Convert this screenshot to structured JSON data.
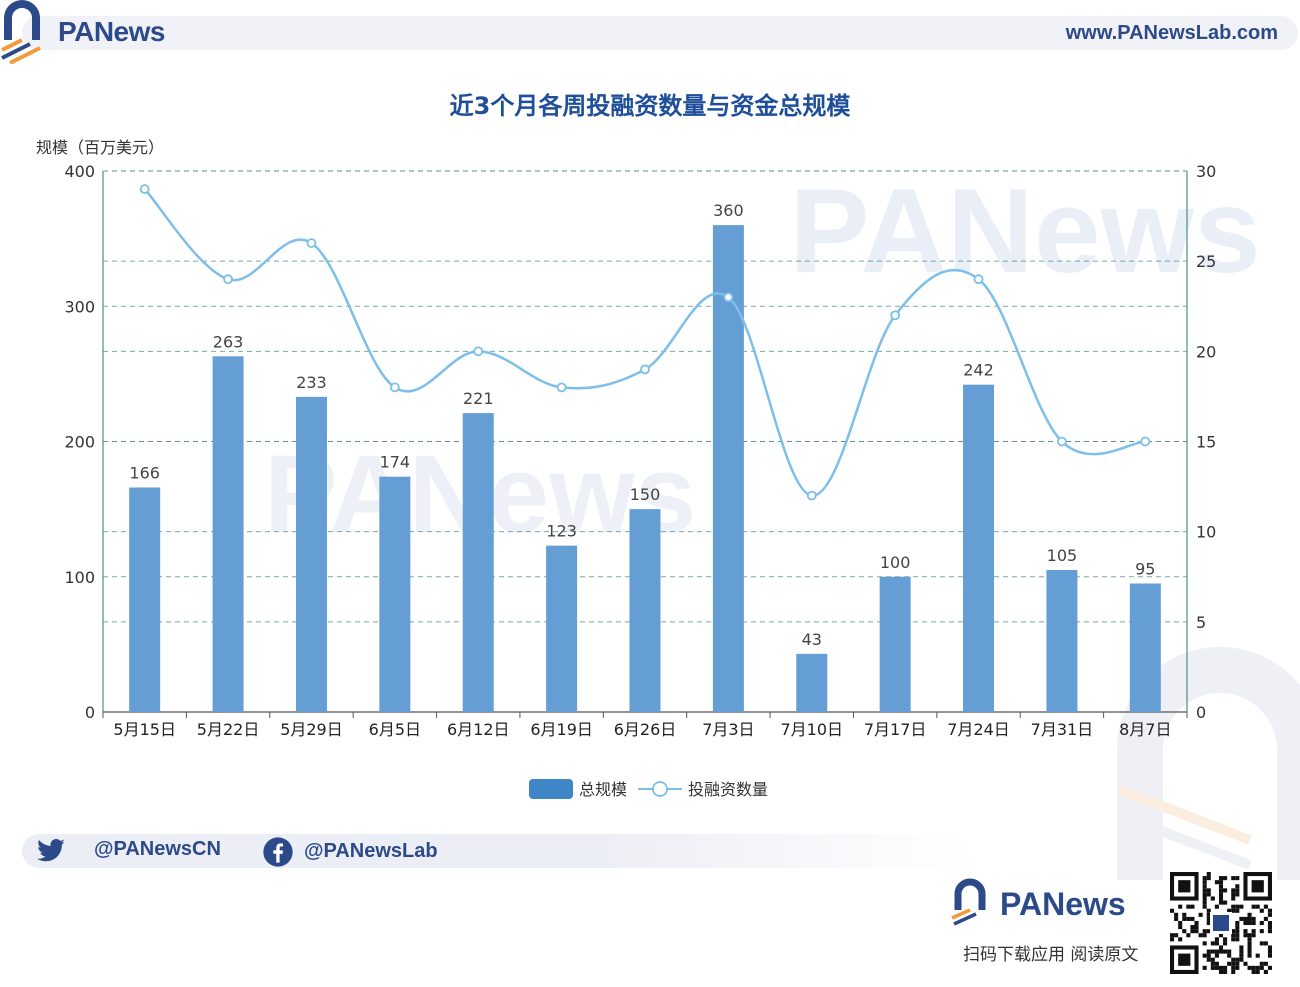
{
  "header": {
    "brand": "PANews",
    "url": "www.PANewsLab.com"
  },
  "footer": {
    "twitter_handle": "@PANewsCN",
    "facebook_handle": "@PANewsLab",
    "brand": "PANews",
    "caption": "扫码下载应用  阅读原文"
  },
  "watermark": "PANews",
  "colors": {
    "bar": "#659ed4",
    "line": "#7dbfe9",
    "grid": "#4a8f8a",
    "brand": "#2c4a8a",
    "title": "#1f4e9a",
    "accent_orange": "#f39a3b"
  },
  "chart_data": {
    "type": "bar",
    "title": "近3个月各周投融资数量与资金总规模",
    "ylabel": "规模（百万美元）",
    "y2label": "",
    "ylim": [
      0,
      400
    ],
    "y2lim": [
      0,
      30
    ],
    "yticks": [
      "0",
      "100",
      "200",
      "300",
      "400"
    ],
    "y2ticks": [
      "0",
      "5",
      "10",
      "15",
      "20",
      "25",
      "30"
    ],
    "categories": [
      "5月15日",
      "5月22日",
      "5月29日",
      "6月5日",
      "6月12日",
      "6月19日",
      "6月26日",
      "7月3日",
      "7月10日",
      "7月17日",
      "7月24日",
      "7月31日",
      "8月7日"
    ],
    "grid": true,
    "legend": "bottom-center",
    "series": [
      {
        "name": "总规模",
        "type": "bar",
        "axis": "left",
        "values": [
          166,
          263,
          233,
          174,
          221,
          123,
          150,
          360,
          43,
          100,
          242,
          105,
          95
        ],
        "labels": [
          "166",
          "263",
          "233",
          "174",
          "221",
          "123",
          "150",
          "360",
          "43",
          "100",
          "242",
          "105",
          "95"
        ]
      },
      {
        "name": "投融资数量",
        "type": "line",
        "smooth": true,
        "axis": "right",
        "values": [
          29,
          24,
          26,
          18,
          20,
          18,
          19,
          23,
          12,
          22,
          24,
          15,
          15
        ]
      }
    ]
  }
}
